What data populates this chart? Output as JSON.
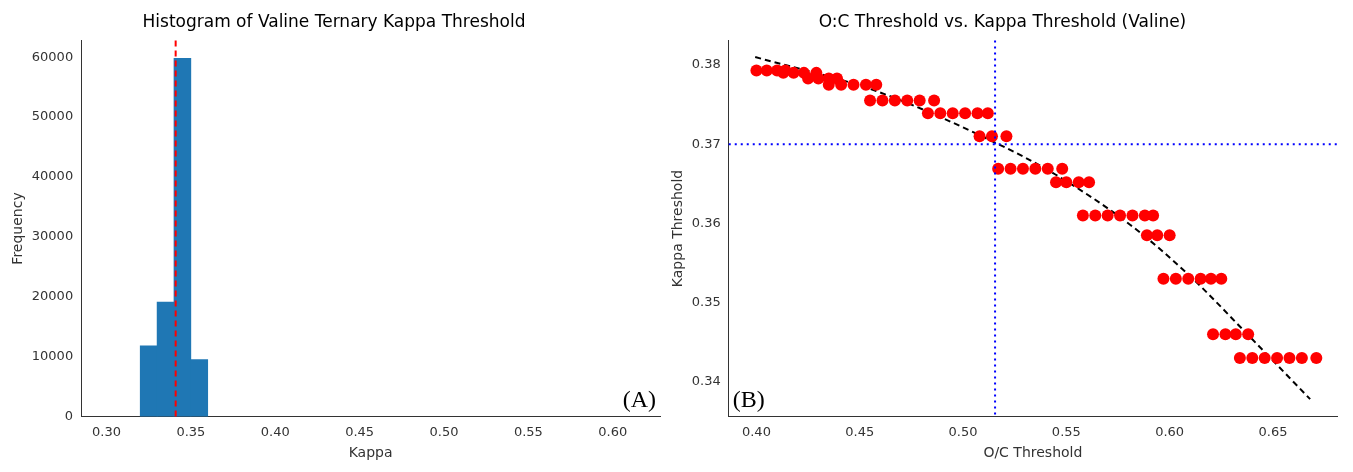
{
  "chart_data": [
    {
      "type": "histogram",
      "title": "Histogram of Valine Ternary Kappa Threshold",
      "xlabel": "Kappa",
      "ylabel": "Frequency",
      "bins": [
        0.32,
        0.33,
        0.34,
        0.35,
        0.36
      ],
      "values": [
        11800,
        19100,
        59800,
        9500
      ],
      "color": "#1f77b4",
      "xlim": [
        0.285,
        0.628
      ],
      "xticks": [
        {
          "value": 0.3,
          "label": "0.30"
        },
        {
          "value": 0.35,
          "label": "0.35"
        },
        {
          "value": 0.4,
          "label": "0.40"
        },
        {
          "value": 0.45,
          "label": "0.45"
        },
        {
          "value": 0.5,
          "label": "0.50"
        },
        {
          "value": 0.55,
          "label": "0.55"
        },
        {
          "value": 0.6,
          "label": "0.60"
        }
      ],
      "ylim": [
        0,
        62800
      ],
      "yticks": [
        0,
        10000,
        20000,
        30000,
        40000,
        50000,
        60000
      ],
      "ref_lines": [
        {
          "axis": "x",
          "value": 0.341,
          "color": "#ff0000",
          "line_style": "dashed"
        }
      ],
      "annotations": [
        "(A)"
      ]
    },
    {
      "type": "scatter",
      "title": "O:C Threshold vs. Kappa Threshold (Valine)",
      "xlabel": "O/C Threshold",
      "ylabel": "Kappa Threshold",
      "series": [
        {
          "type": "scatter",
          "color": "#ff0000",
          "marker": "circle",
          "x": [
            0.4,
            0.405,
            0.41,
            0.414,
            0.413,
            0.418,
            0.423,
            0.429,
            0.425,
            0.43,
            0.435,
            0.439,
            0.435,
            0.441,
            0.447,
            0.453,
            0.458,
            0.455,
            0.461,
            0.467,
            0.473,
            0.479,
            0.486,
            0.483,
            0.489,
            0.495,
            0.501,
            0.507,
            0.512,
            0.508,
            0.514,
            0.521,
            0.517,
            0.523,
            0.529,
            0.535,
            0.541,
            0.548,
            0.545,
            0.55,
            0.556,
            0.561,
            0.558,
            0.564,
            0.57,
            0.576,
            0.582,
            0.588,
            0.592,
            0.589,
            0.594,
            0.6,
            0.597,
            0.603,
            0.609,
            0.615,
            0.62,
            0.625,
            0.621,
            0.627,
            0.632,
            0.638,
            0.634,
            0.64,
            0.646,
            0.652,
            0.658,
            0.664,
            0.671
          ],
          "values": [
            0.3793,
            0.3793,
            0.3793,
            0.3793,
            0.379,
            0.379,
            0.379,
            0.379,
            0.3783,
            0.3783,
            0.3783,
            0.3783,
            0.3775,
            0.3775,
            0.3775,
            0.3775,
            0.3775,
            0.3755,
            0.3755,
            0.3755,
            0.3755,
            0.3755,
            0.3755,
            0.3739,
            0.3739,
            0.3739,
            0.3739,
            0.3739,
            0.3739,
            0.371,
            0.371,
            0.371,
            0.3669,
            0.3669,
            0.3669,
            0.3669,
            0.3669,
            0.3669,
            0.3652,
            0.3652,
            0.3652,
            0.3652,
            0.361,
            0.361,
            0.361,
            0.361,
            0.361,
            0.361,
            0.361,
            0.3585,
            0.3585,
            0.3585,
            0.353,
            0.353,
            0.353,
            0.353,
            0.353,
            0.353,
            0.346,
            0.346,
            0.346,
            0.346,
            0.343,
            0.343,
            0.343,
            0.343,
            0.343,
            0.343,
            0.343
          ]
        },
        {
          "type": "line",
          "color": "#000000",
          "marker": "none",
          "line_style": "dashed",
          "x": [
            0.3994,
            0.458,
            0.5155,
            0.5445,
            0.581,
            0.61,
            0.638,
            0.668
          ],
          "values": [
            0.381,
            0.3767,
            0.3702,
            0.3662,
            0.3598,
            0.3533,
            0.3459,
            0.3378
          ]
        }
      ],
      "xlim": [
        0.3866,
        0.681
      ],
      "xticks": [
        {
          "value": 0.4,
          "label": "0.40"
        },
        {
          "value": 0.45,
          "label": "0.45"
        },
        {
          "value": 0.5,
          "label": "0.50"
        },
        {
          "value": 0.55,
          "label": "0.55"
        },
        {
          "value": 0.6,
          "label": "0.60"
        },
        {
          "value": 0.65,
          "label": "0.65"
        }
      ],
      "ylim": [
        0.3356,
        0.3831
      ],
      "yticks": [
        0.34,
        0.35,
        0.36,
        0.37,
        0.38
      ],
      "ref_lines": [
        {
          "axis": "x",
          "value": 0.5155,
          "color": "#0000ff",
          "line_style": "dotted"
        },
        {
          "axis": "y",
          "value": 0.37,
          "color": "#0000ff",
          "line_style": "dotted"
        }
      ],
      "annotations": [
        "(B)"
      ]
    }
  ]
}
